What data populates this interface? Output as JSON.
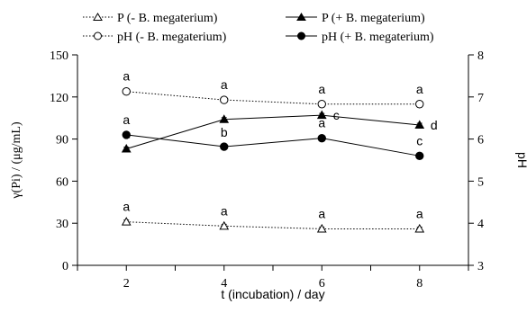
{
  "chart_data": {
    "type": "line",
    "x": [
      2,
      4,
      6,
      8
    ],
    "xlim": [
      1,
      9
    ],
    "xlabel": "t (incubation) / day",
    "ylabel_left": "γ(Pi) / (μg/mL)",
    "ylim_left": [
      0,
      150
    ],
    "yticks_left": [
      0,
      30,
      60,
      90,
      120,
      150
    ],
    "ylabel_right": "pH",
    "ylim_right": [
      3,
      8
    ],
    "yticks_right": [
      3,
      4,
      5,
      6,
      7,
      8
    ],
    "grid": false,
    "legend_position": "top",
    "series": [
      {
        "name": "P (- B. megaterium)",
        "axis": "left",
        "marker": "triangle-open",
        "line": "dotted",
        "values": [
          31,
          28,
          26,
          26
        ],
        "labels": [
          "a",
          "a",
          "a",
          "a"
        ]
      },
      {
        "name": "P (+ B. megaterium)",
        "axis": "left",
        "marker": "triangle-filled",
        "line": "solid",
        "values": [
          83,
          104,
          107,
          100
        ],
        "labels": [
          "a",
          "",
          "c",
          "d"
        ]
      },
      {
        "name": "pH (- B. megaterium)",
        "axis": "right",
        "marker": "circle-open",
        "line": "dotted",
        "values": [
          7.13,
          6.93,
          6.83,
          6.83
        ],
        "labels": [
          "a",
          "a",
          "a",
          "a"
        ]
      },
      {
        "name": "pH (+ B. megaterium)",
        "axis": "right",
        "marker": "circle-filled",
        "line": "solid",
        "values": [
          6.1,
          5.82,
          6.02,
          5.6
        ],
        "labels": [
          "a",
          "b",
          "a",
          "c"
        ]
      }
    ]
  }
}
